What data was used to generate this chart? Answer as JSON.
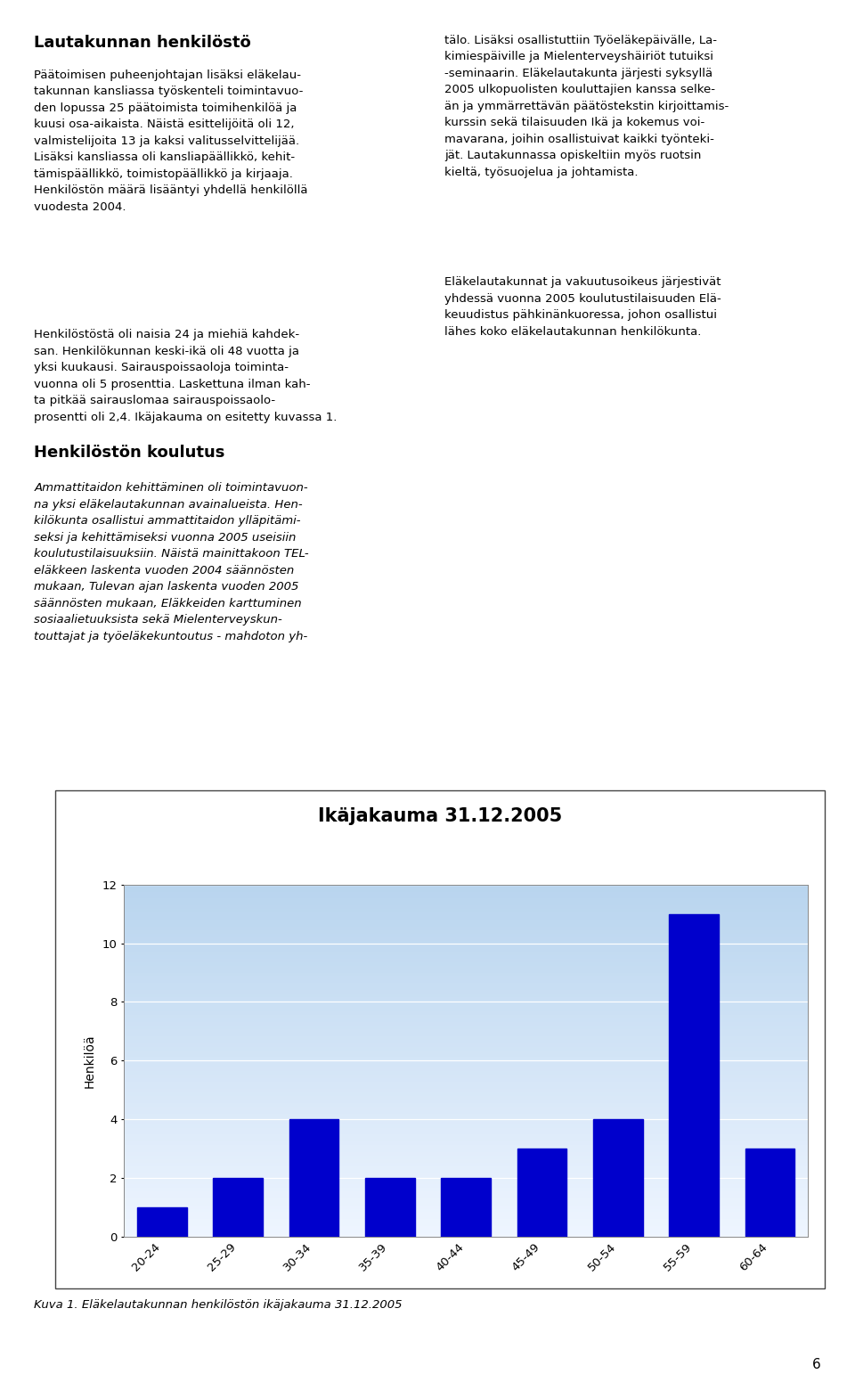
{
  "title": "Ikäjakauma 31.12.2005",
  "categories": [
    "20-24",
    "25-29",
    "30-34",
    "35-39",
    "40-44",
    "45-49",
    "50-54",
    "55-59",
    "60-64"
  ],
  "values": [
    1,
    2,
    4,
    2,
    2,
    3,
    4,
    11,
    3
  ],
  "bar_color": "#0000CC",
  "ylabel": "Henkilöä",
  "ylim": [
    0,
    12
  ],
  "yticks": [
    0,
    2,
    4,
    6,
    8,
    10,
    12
  ],
  "caption": "Kuva 1. Eläkelautakunnan henkilöstön ikäjakauma 31.12.2005",
  "title_fontsize": 15,
  "axis_fontsize": 10,
  "tick_fontsize": 9.5,
  "caption_fontsize": 9.5,
  "page_number": "6",
  "header1": "Lautakunnan henkilöstö",
  "left_col_text1": "Päätoimisen puheenjohtajan lisäksi eläkelau-\ntakunnan kansliassa työskenteli toimintavuo-\nden lopussa 25 päätoimista toimihenkilöä ja\nkuusi osa-aikaista. Näistä esittelijöitä oli 12,\nvalmistelijoita 13 ja kaksi valitusselvittelijää.\nLisäksi kansliassa oli kansliapäällikkö, kehit-\ntämispäällikkö, toimistopäällikkö ja kirjaaja.\nHenkilöstön määrä lisääntyi yhdellä henkilöllä\nvuodesta 2004.",
  "left_col_text2": "Henkilöstöstä oli naisia 24 ja miehiä kahdek-\nsan. Henkilökunnan keski-ikä oli 48 vuotta ja\nyksi kuukausi. Sairauspoissaoloja toiminta-\nvuonna oli 5 prosenttia. Laskettuna ilman kah-\nta pitkää sairauslomaa sairauspoissaolo-\nprosentti oli 2,4. Ikäjakauma on esitetty kuvassa 1.",
  "right_col_text1": "tälo. Lisäksi osallistuttiin Työeläkepäivälle, La-\nkimiespäiville ja Mielenterveyshäiriöt tutuiksi\n-seminaarin. Eläkelautakunta järjesti syksyllä\n2005 ulkopuolisten kouluttajien kanssa selke-\nän ja ymmärrettävän päätöstekstin kirjoittamis-\nkurssin sekä tilaisuuden Ikä ja kokemus voi-\nmavarana, joihin osallistuivat kaikki työnteki-\njät. Lautakunnassa opiskeltiin myös ruotsin\nkieltä, työsuojelua ja johtamista.",
  "right_col_text2": "Eläkelautakunnat ja vakuutusoikeus järjestivät\nyhdessä vuonna 2005 koulutustilaisuuden Elä-\nkeuudistus pähkinänkuoressa, johon osallistui\nlähes koko eläkelautakunnan henkilökunta.",
  "header2": "Henkilöstön koulutus",
  "koulutus_text": "Ammattitaidon kehittäminen oli toimintavuon-\nna yksi eläkelautakunnan avainalueista. Hen-\nkilökunta osallistui ammattitaidon ylläpitämi-\nseksi ja kehittämiseksi vuonna 2005 useisiin\nkoulutustilaisuuksiin. Näistä mainittakoon TEL-\neläkkeen laskenta vuoden 2004 säännösten\nmukaan, Tulevan ajan laskenta vuoden 2005\nsäännösten mukaan, Eläkkeiden karttuminen\nsosiaalietuuksista sekä Mielenterveyskun-\ntouttajat ja työeläkekuntoutus - mahdoton yh-",
  "bg_grad_top": "#b8d4ee",
  "bg_grad_bottom": "#eef5ff",
  "text_fontsize": 9.5,
  "header_fontsize": 13
}
